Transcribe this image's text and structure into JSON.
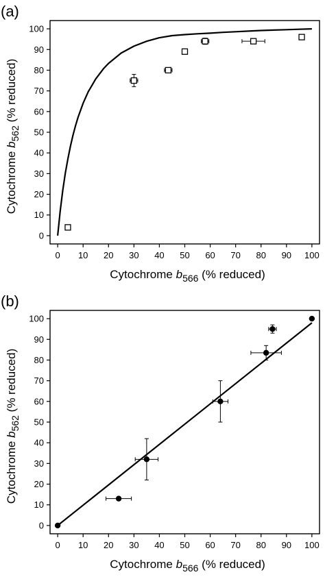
{
  "chart_data": [
    {
      "type": "scatter",
      "panel_label": "(a)",
      "xlabel": {
        "pre": "Cytochrome ",
        "italic": "b",
        "sub": "566",
        "post": " (% reduced)"
      },
      "ylabel": {
        "pre": "Cytochrome ",
        "italic": "b",
        "sub": "562",
        "post": " (% reduced)"
      },
      "xlim": [
        -3,
        103
      ],
      "ylim": [
        -4,
        104
      ],
      "xticks": [
        0,
        10,
        20,
        30,
        40,
        50,
        60,
        70,
        80,
        90,
        100
      ],
      "yticks": [
        0,
        10,
        20,
        30,
        40,
        50,
        60,
        70,
        80,
        90,
        100
      ],
      "grid": false,
      "legend": "none",
      "series": [
        {
          "marker": "open-square",
          "points": [
            {
              "x": 4,
              "y": 4,
              "xerr": 0,
              "yerr": 0
            },
            {
              "x": 30,
              "y": 75,
              "xerr": 1.5,
              "yerr": 3
            },
            {
              "x": 43.5,
              "y": 80,
              "xerr": 1.5,
              "yerr": 0
            },
            {
              "x": 50,
              "y": 89,
              "xerr": 0.5,
              "yerr": 0
            },
            {
              "x": 58,
              "y": 94,
              "xerr": 1.5,
              "yerr": 1.5
            },
            {
              "x": 77,
              "y": 94,
              "xerr": 4.5,
              "yerr": 0
            },
            {
              "x": 96,
              "y": 96,
              "xerr": 0,
              "yerr": 0
            }
          ]
        },
        {
          "type": "line",
          "style": "fit-curve",
          "x": [
            0,
            1,
            2,
            3,
            4,
            5,
            6,
            7,
            8,
            10,
            12,
            15,
            18,
            20,
            25,
            30,
            35,
            40,
            45,
            50,
            55,
            60,
            65,
            70,
            75,
            80,
            85,
            90,
            95,
            100
          ],
          "y": [
            0,
            11.9,
            21.8,
            30.1,
            37.1,
            43.2,
            48.5,
            53.1,
            57.2,
            64.0,
            69.5,
            75.8,
            80.7,
            83.3,
            88.3,
            91.6,
            94.0,
            95.7,
            96.7,
            97.2,
            97.6,
            97.9,
            98.3,
            98.6,
            98.9,
            99.2,
            99.4,
            99.6,
            99.8,
            100
          ]
        }
      ]
    },
    {
      "type": "scatter",
      "panel_label": "(b)",
      "xlabel": {
        "pre": "Cytochrome ",
        "italic": "b",
        "sub": "566",
        "post": " (% reduced)"
      },
      "ylabel": {
        "pre": "Cytochrome ",
        "italic": "b",
        "sub": "562",
        "post": " (% reduced)"
      },
      "xlim": [
        -3,
        103
      ],
      "ylim": [
        -4,
        104
      ],
      "xticks": [
        0,
        10,
        20,
        30,
        40,
        50,
        60,
        70,
        80,
        90,
        100
      ],
      "yticks": [
        0,
        10,
        20,
        30,
        40,
        50,
        60,
        70,
        80,
        90,
        100
      ],
      "grid": false,
      "legend": "none",
      "series": [
        {
          "marker": "filled-circle",
          "points": [
            {
              "x": 0,
              "y": 0,
              "xerr": 0,
              "yerr": 0
            },
            {
              "x": 24,
              "y": 13,
              "xerr": 5,
              "yerr": 0
            },
            {
              "x": 35,
              "y": 32,
              "xerr": 4.5,
              "yerr": 10
            },
            {
              "x": 64,
              "y": 60,
              "xerr": 3,
              "yerr": 10
            },
            {
              "x": 82,
              "y": 83.5,
              "xerr": 6,
              "yerr": 3.5
            },
            {
              "x": 84.5,
              "y": 95,
              "xerr": 1.5,
              "yerr": 2
            },
            {
              "x": 100,
              "y": 100,
              "xerr": 0,
              "yerr": 0
            }
          ]
        },
        {
          "type": "line",
          "style": "linear-fit",
          "x": [
            0,
            100
          ],
          "y": [
            0,
            98
          ]
        }
      ]
    }
  ]
}
